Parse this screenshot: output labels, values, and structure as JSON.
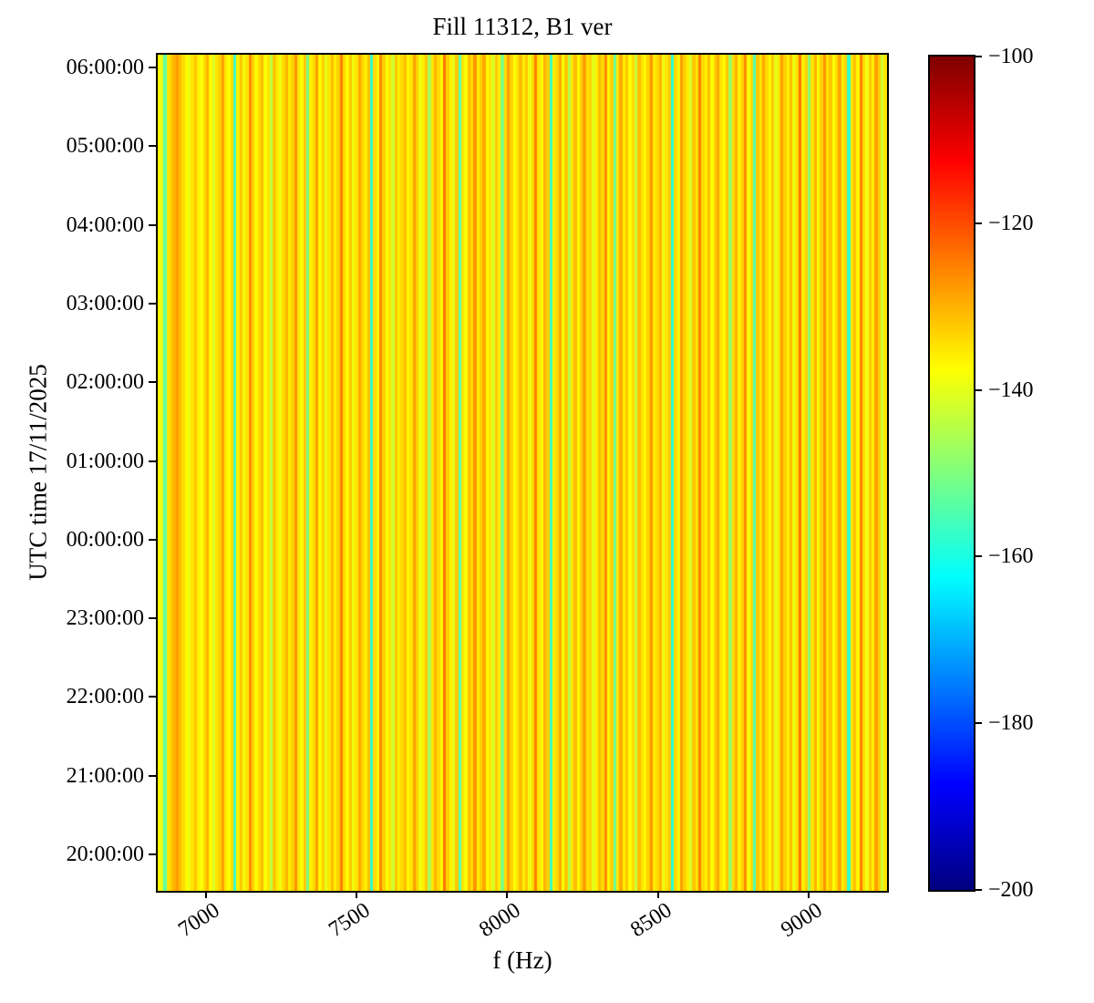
{
  "figure": {
    "title": "Fill 11312, B1 ver",
    "xlabel": "f (Hz)",
    "ylabel": "UTC time 17/11/2025"
  },
  "chart_data": {
    "type": "heatmap",
    "title": "Fill 11312, B1 ver",
    "xlabel": "f (Hz)",
    "ylabel": "UTC time 17/11/2025",
    "colormap": "jet",
    "pattern": "vertical stripes constant in time (each frequency column has one value for the whole night)",
    "x_ticks": [
      7000,
      7500,
      8000,
      8500,
      9000
    ],
    "x_range_hz": [
      6840,
      9260
    ],
    "y_tick_labels_top_to_bottom": [
      "06:00:00",
      "05:00:00",
      "04:00:00",
      "03:00:00",
      "02:00:00",
      "01:00:00",
      "00:00:00",
      "23:00:00",
      "22:00:00",
      "21:00:00",
      "20:00:00"
    ],
    "colorbar": {
      "vmin": -200,
      "vmax": -100,
      "tick_labels_top_to_bottom": [
        "−100",
        "−120",
        "−140",
        "−160",
        "−180",
        "−200"
      ],
      "tick_values": [
        -100,
        -120,
        -140,
        -160,
        -180,
        -200
      ]
    },
    "columns_db": [
      -137,
      -140,
      -153,
      -135,
      -133,
      -130,
      -128,
      -131,
      -134,
      -137,
      -139,
      -135,
      -132,
      -136,
      -138,
      -134,
      -130,
      -137,
      -141,
      -135,
      -133,
      -128,
      -135,
      -138,
      -134,
      -157,
      -136,
      -132,
      -139,
      -135,
      -126,
      -133,
      -137,
      -134,
      -131,
      -138,
      -135,
      -144,
      -132,
      -136,
      -139,
      -134,
      -130,
      -136,
      -133,
      -127,
      -135,
      -138,
      -132,
      -151,
      -136,
      -134,
      -128,
      -137,
      -133,
      -140,
      -135,
      -131,
      -136,
      -133,
      -125,
      -134,
      -137,
      -132,
      -139,
      -135,
      -129,
      -133,
      -136,
      -131,
      -158,
      -134,
      -137,
      -126,
      -133,
      -138,
      -135,
      -142,
      -132,
      -136,
      -134,
      -131,
      -137,
      -135,
      -128,
      -133,
      -139,
      -136,
      -132,
      -146,
      -135,
      -130,
      -134,
      -137,
      -124,
      -133,
      -136,
      -140,
      -132,
      -154,
      -135,
      -138,
      -131,
      -134,
      -127,
      -136,
      -133,
      -129,
      -137,
      -135,
      -141,
      -132,
      -136,
      -150,
      -134,
      -128,
      -133,
      -138,
      -135,
      -131,
      -136,
      -132,
      -139,
      -134,
      -125,
      -135,
      -137,
      -130,
      -133,
      -157,
      -136,
      -134,
      -129,
      -138,
      -132,
      -145,
      -135,
      -131,
      -137,
      -133,
      -128,
      -135,
      -133,
      -140,
      -136,
      -131,
      -134,
      -126,
      -137,
      -133,
      -152,
      -135,
      -129,
      -136,
      -132,
      -138,
      -134,
      -143,
      -131,
      -135,
      -137,
      -133,
      -127,
      -136,
      -134,
      -130,
      -139,
      -135,
      -132,
      -159,
      -134,
      -137,
      -128,
      -133,
      -136,
      -141,
      -132,
      -135,
      -125,
      -134,
      -136,
      -131,
      -138,
      -133,
      -129,
      -135,
      -137,
      -132,
      -147,
      -134,
      -130,
      -136,
      -133,
      -126,
      -138,
      -134,
      -155,
      -132,
      -135,
      -129,
      -134,
      -137,
      -132,
      -140,
      -135,
      -128,
      -133,
      -136,
      -131,
      -139,
      -134,
      -124,
      -136,
      -133,
      -149,
      -135,
      -130,
      -137,
      -133,
      -127,
      -135,
      -132,
      -138,
      -134,
      -129,
      -136,
      -133,
      -158,
      -135,
      -131,
      -137,
      -125,
      -134,
      -139,
      -132,
      -136,
      -128,
      -133,
      -142,
      -135
    ]
  }
}
